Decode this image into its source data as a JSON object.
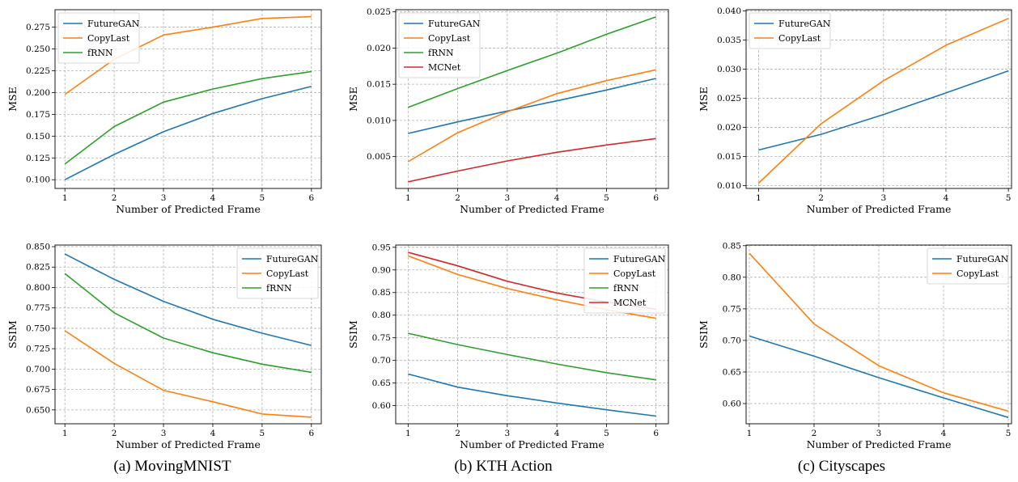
{
  "colors": {
    "FutureGAN": "#1f77b4",
    "CopyLast": "#ff7f0e",
    "fRNN": "#2ca02c",
    "MCNet": "#d62728",
    "grid": "#b0b0b0"
  },
  "captions": {
    "a": "(a)  MovingMNIST",
    "b": "(b)  KTH Action",
    "c": "(c)  Cityscapes"
  },
  "chart_data": [
    {
      "id": "mnist-mse",
      "type": "line",
      "xlabel": "Number of Predicted Frame",
      "ylabel": "MSE",
      "xlim": [
        0.8,
        6.2
      ],
      "ylim": [
        0.09,
        0.295
      ],
      "xticks": [
        "1",
        "2",
        "3",
        "4",
        "5",
        "6"
      ],
      "yticks": [
        "0.100",
        "0.125",
        "0.150",
        "0.175",
        "0.200",
        "0.225",
        "0.250",
        "0.275"
      ],
      "legend": "top-left",
      "grid": true,
      "x": [
        1,
        2,
        3,
        4,
        5,
        6
      ],
      "series": [
        {
          "name": "FutureGAN",
          "values": [
            0.1,
            0.129,
            0.155,
            0.176,
            0.193,
            0.207
          ]
        },
        {
          "name": "CopyLast",
          "values": [
            0.198,
            0.238,
            0.266,
            0.275,
            0.285,
            0.287
          ]
        },
        {
          "name": "fRNN",
          "values": [
            0.118,
            0.161,
            0.189,
            0.204,
            0.216,
            0.224
          ]
        }
      ]
    },
    {
      "id": "kth-mse",
      "type": "line",
      "xlabel": "Number of Predicted Frame",
      "ylabel": "MSE",
      "xlim": [
        0.75,
        6.25
      ],
      "ylim": [
        0.0006,
        0.0253
      ],
      "xticks": [
        "1",
        "2",
        "3",
        "4",
        "5",
        "6"
      ],
      "yticks": [
        "0.005",
        "0.010",
        "0.015",
        "0.020",
        "0.025"
      ],
      "legend": "top-left",
      "grid": true,
      "x": [
        1,
        2,
        3,
        4,
        5,
        6
      ],
      "series": [
        {
          "name": "FutureGAN",
          "values": [
            0.0082,
            0.0098,
            0.0113,
            0.0127,
            0.0142,
            0.0158
          ]
        },
        {
          "name": "CopyLast",
          "values": [
            0.0043,
            0.0083,
            0.0112,
            0.0137,
            0.0155,
            0.017
          ]
        },
        {
          "name": "fRNN",
          "values": [
            0.0118,
            0.0144,
            0.0169,
            0.0193,
            0.0219,
            0.0243
          ]
        },
        {
          "name": "MCNet",
          "values": [
            0.0015,
            0.003,
            0.0044,
            0.0056,
            0.0066,
            0.0075
          ]
        }
      ]
    },
    {
      "id": "city-mse",
      "type": "line",
      "xlabel": "Number of Predicted Frame",
      "ylabel": "MSE",
      "xlim": [
        0.8,
        5.05
      ],
      "ylim": [
        0.0095,
        0.0402
      ],
      "xticks": [
        "1",
        "2",
        "3",
        "4",
        "5"
      ],
      "yticks": [
        "0.010",
        "0.015",
        "0.020",
        "0.025",
        "0.030",
        "0.035",
        "0.040"
      ],
      "legend": "top-left",
      "grid": true,
      "x": [
        1,
        2,
        3,
        4,
        5
      ],
      "series": [
        {
          "name": "FutureGAN",
          "values": [
            0.0161,
            0.0188,
            0.0222,
            0.0259,
            0.0297
          ]
        },
        {
          "name": "CopyLast",
          "values": [
            0.0104,
            0.0206,
            0.028,
            0.0341,
            0.0387
          ]
        }
      ]
    },
    {
      "id": "mnist-ssim",
      "type": "line",
      "xlabel": "Number of Predicted Frame",
      "ylabel": "SSIM",
      "xlim": [
        0.8,
        6.2
      ],
      "ylim": [
        0.633,
        0.852
      ],
      "xticks": [
        "1",
        "2",
        "3",
        "4",
        "5",
        "6"
      ],
      "yticks": [
        "0.650",
        "0.675",
        "0.700",
        "0.725",
        "0.750",
        "0.775",
        "0.800",
        "0.825",
        "0.850"
      ],
      "legend": "top-right",
      "grid": true,
      "x": [
        1,
        2,
        3,
        4,
        5,
        6
      ],
      "series": [
        {
          "name": "FutureGAN",
          "values": [
            0.841,
            0.81,
            0.783,
            0.761,
            0.744,
            0.729
          ]
        },
        {
          "name": "CopyLast",
          "values": [
            0.747,
            0.707,
            0.674,
            0.66,
            0.645,
            0.641
          ]
        },
        {
          "name": "fRNN",
          "values": [
            0.817,
            0.769,
            0.738,
            0.72,
            0.706,
            0.696
          ]
        }
      ]
    },
    {
      "id": "kth-ssim",
      "type": "line",
      "xlabel": "Number of Predicted Frame",
      "ylabel": "SSIM",
      "xlim": [
        0.75,
        6.25
      ],
      "ylim": [
        0.56,
        0.955
      ],
      "xticks": [
        "1",
        "2",
        "3",
        "4",
        "5",
        "6"
      ],
      "yticks": [
        "0.60",
        "0.65",
        "0.70",
        "0.75",
        "0.80",
        "0.85",
        "0.90",
        "0.95"
      ],
      "legend": "top-right",
      "grid": true,
      "x": [
        1,
        2,
        3,
        4,
        5,
        6
      ],
      "series": [
        {
          "name": "FutureGAN",
          "values": [
            0.67,
            0.641,
            0.622,
            0.606,
            0.591,
            0.577
          ]
        },
        {
          "name": "CopyLast",
          "values": [
            0.931,
            0.89,
            0.859,
            0.834,
            0.812,
            0.793
          ]
        },
        {
          "name": "fRNN",
          "values": [
            0.76,
            0.735,
            0.713,
            0.692,
            0.673,
            0.657
          ]
        },
        {
          "name": "MCNet",
          "values": [
            0.939,
            0.909,
            0.875,
            0.849,
            0.829,
            0.813
          ]
        }
      ]
    },
    {
      "id": "city-ssim",
      "type": "line",
      "xlabel": "Number of Predicted Frame",
      "ylabel": "SSIM",
      "xlim": [
        0.95,
        5.05
      ],
      "ylim": [
        0.568,
        0.851
      ],
      "xticks": [
        "1",
        "2",
        "3",
        "4",
        "5"
      ],
      "yticks": [
        "0.60",
        "0.65",
        "0.70",
        "0.75",
        "0.80",
        "0.85"
      ],
      "legend": "top-right",
      "grid": true,
      "x": [
        1,
        2,
        3,
        4,
        5
      ],
      "series": [
        {
          "name": "FutureGAN",
          "values": [
            0.707,
            0.675,
            0.641,
            0.609,
            0.578
          ]
        },
        {
          "name": "CopyLast",
          "values": [
            0.838,
            0.726,
            0.66,
            0.617,
            0.588
          ]
        }
      ]
    }
  ]
}
